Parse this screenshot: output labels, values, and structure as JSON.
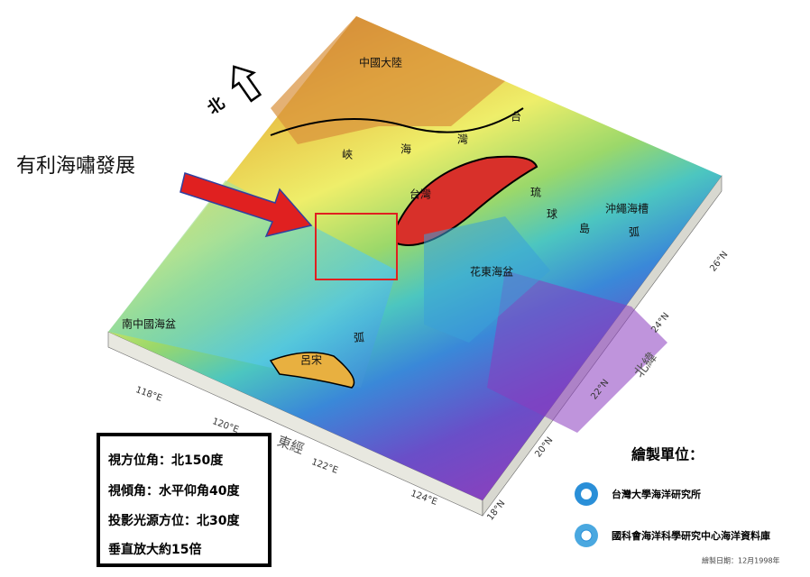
{
  "annotation": "有利海嘯發展",
  "north_label": "北",
  "map_labels": [
    "中國大陸",
    "台",
    "灣",
    "海",
    "峽",
    "台灣",
    "琉",
    "球",
    "島",
    "弧",
    "沖繩海槽",
    "南中國海盆",
    "花東海盆",
    "呂宋",
    "弧"
  ],
  "longitude": {
    "label": "東經",
    "ticks": [
      "118°E",
      "120°E",
      "122°E",
      "124°E"
    ]
  },
  "latitude": {
    "label": "北緯",
    "ticks": [
      "18°N",
      "20°N",
      "22°N",
      "24°N",
      "26°N"
    ]
  },
  "view_settings": [
    "視方位角：北150度",
    "視傾角：水平仰角40度",
    "投影光源方位：北30度",
    "垂直放大約15倍"
  ],
  "credits": {
    "title": "繪製單位：",
    "institutions": [
      "台灣大學海洋研究所",
      "國科會海洋科學研究中心海洋資料庫"
    ],
    "date": "繪製日期：12月1998年"
  }
}
